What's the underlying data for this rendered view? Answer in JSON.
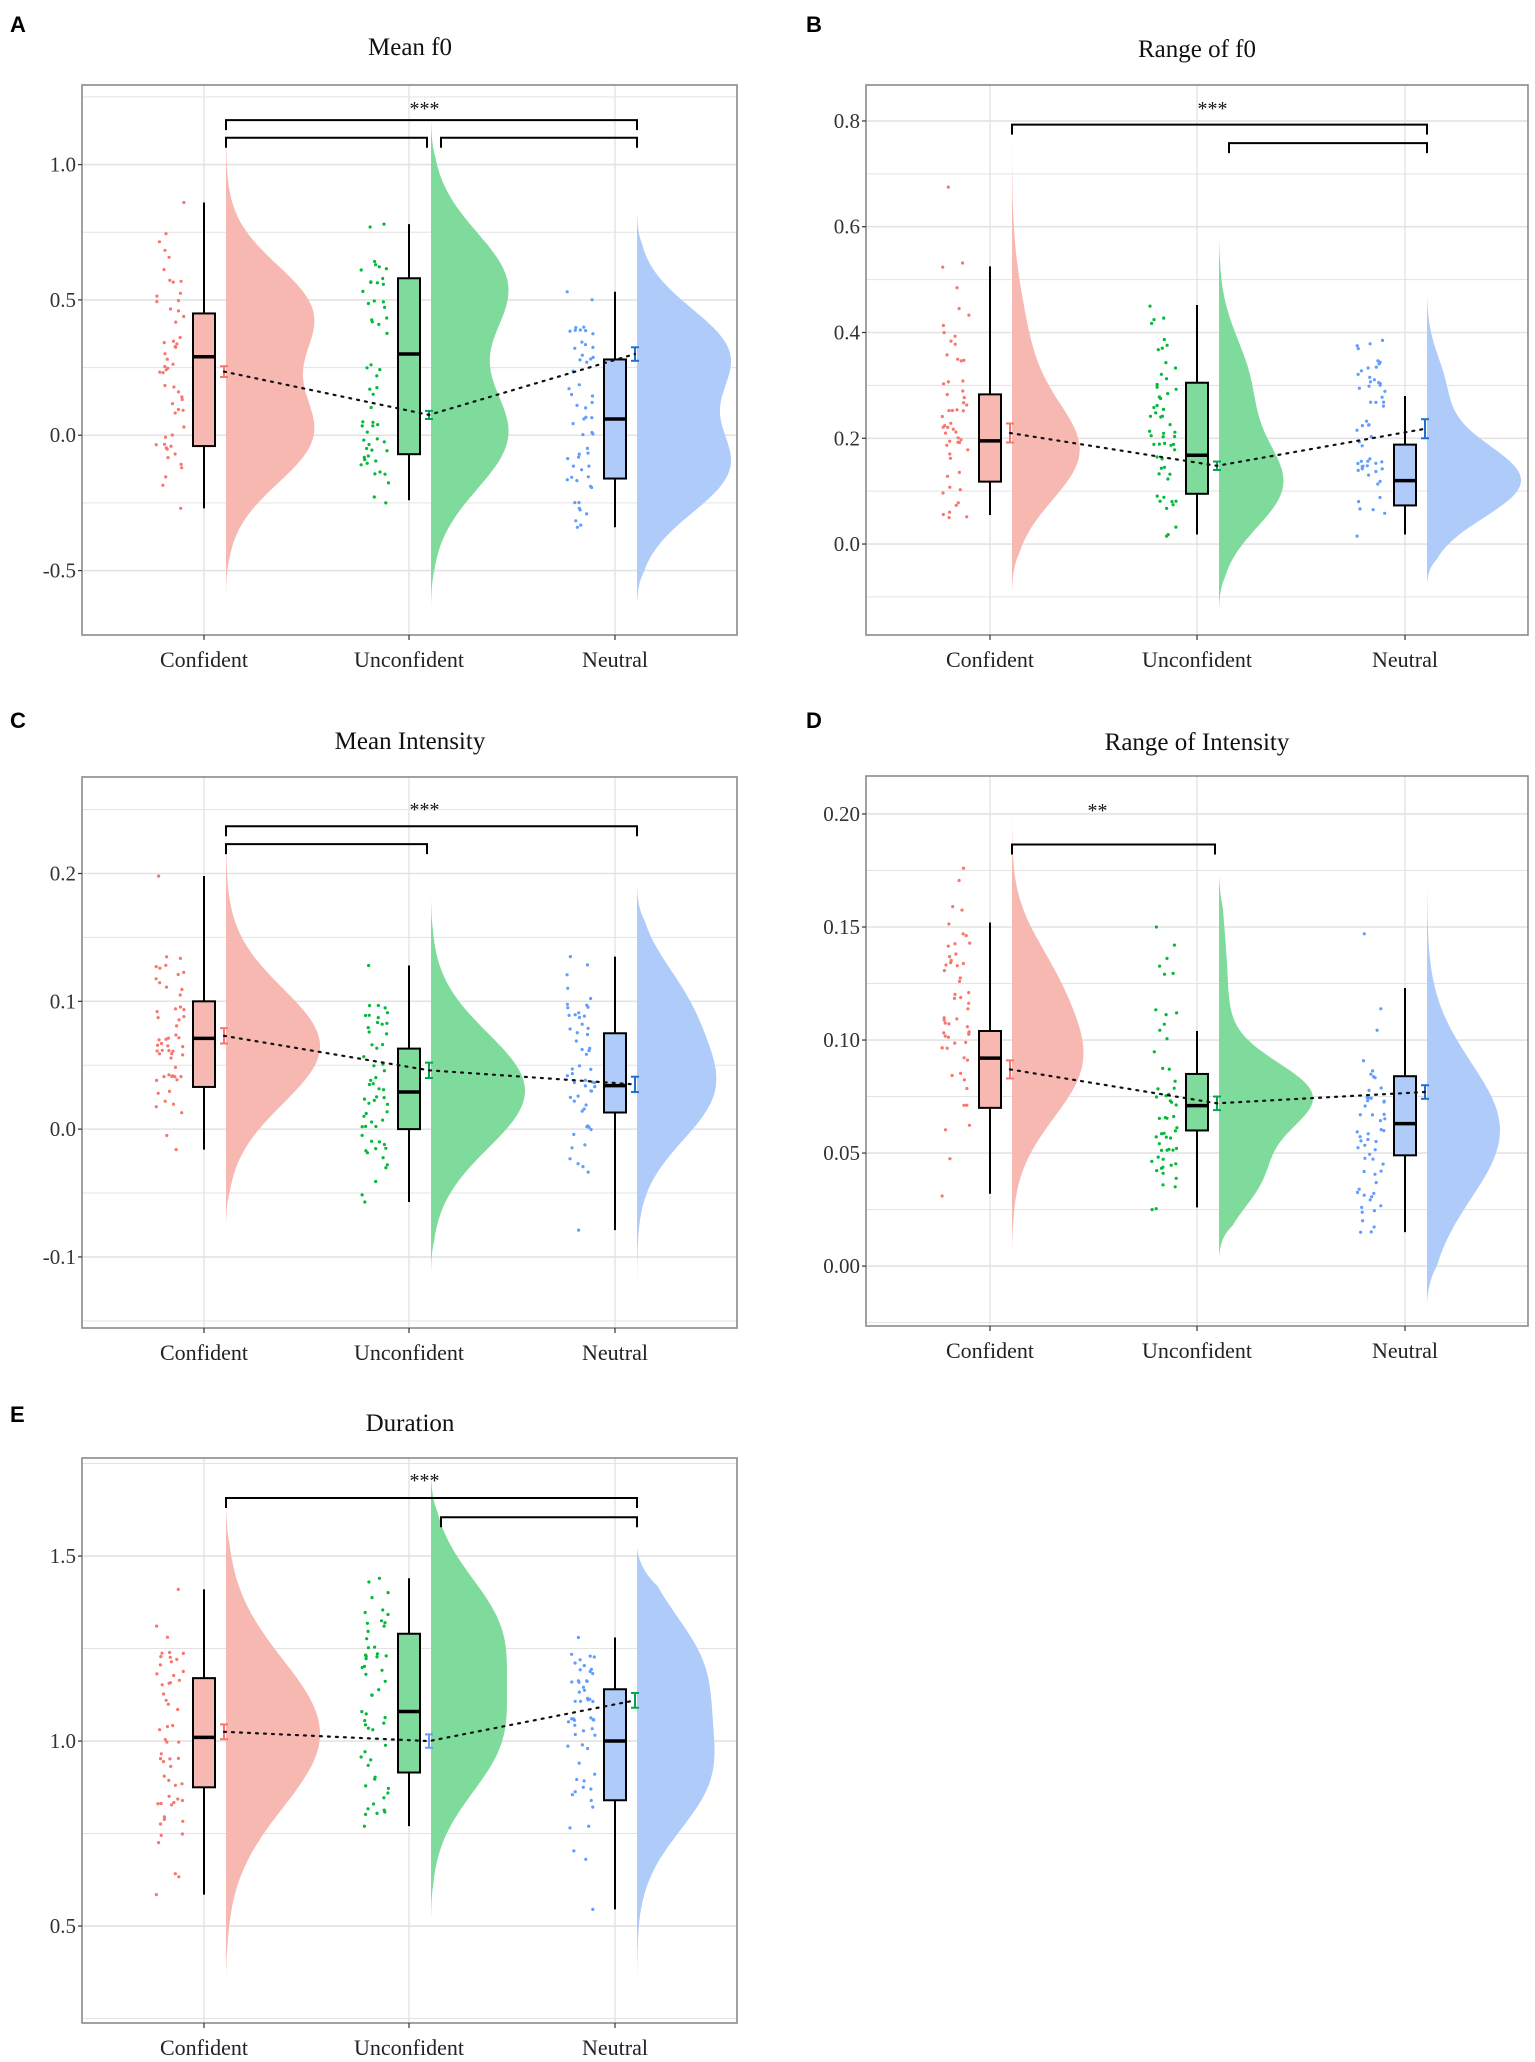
{
  "chart_data": [
    {
      "panel": "A",
      "type": "raincloud",
      "title": "Mean f0",
      "ylim": [
        -0.738,
        1.294
      ],
      "yticks": [
        -0.5,
        0,
        0.5,
        1.0
      ],
      "ytick_labels": [
        "-0.5",
        "0.0",
        "0.5",
        "1.0"
      ],
      "categories": [
        "Confident",
        "Unconfident",
        "Neutral"
      ],
      "groups": [
        {
          "name": "Confident",
          "box": {
            "min": -0.27,
            "q1": -0.04,
            "median": 0.29,
            "q3": 0.45,
            "max": 0.86
          },
          "mean": 0.235,
          "se": 0.02,
          "points_range": [
            -0.27,
            0.86
          ],
          "density_range": [
            -0.61,
            1.21
          ],
          "density_components": [
            {
              "mu": 0.45,
              "sd": 0.18,
              "w": 1
            },
            {
              "mu": 0.0,
              "sd": 0.18,
              "w": 1
            }
          ],
          "mean_bar_color": "#F8766D"
        },
        {
          "name": "Unconfident",
          "box": {
            "min": -0.24,
            "q1": -0.07,
            "median": 0.3,
            "q3": 0.58,
            "max": 0.78
          },
          "mean": 0.075,
          "se": 0.015,
          "points_range": [
            -0.25,
            0.78
          ],
          "density_range": [
            -0.65,
            1.18
          ],
          "density_components": [
            {
              "mu": 0.55,
              "sd": 0.2,
              "w": 1
            },
            {
              "mu": 0.0,
              "sd": 0.2,
              "w": 1
            }
          ],
          "mean_bar_color": "#00A651"
        },
        {
          "name": "Neutral",
          "box": {
            "min": -0.34,
            "q1": -0.16,
            "median": 0.06,
            "q3": 0.28,
            "max": 0.53
          },
          "mean": 0.3,
          "se": 0.025,
          "points_range": [
            -0.34,
            0.53
          ],
          "density_range": [
            -0.63,
            0.83
          ],
          "density_components": [
            {
              "mu": 0.3,
              "sd": 0.17,
              "w": 1
            },
            {
              "mu": -0.12,
              "sd": 0.17,
              "w": 1
            }
          ],
          "mean_bar_color": "#1F6FD0"
        }
      ],
      "significance": {
        "label": "***",
        "label_y": 1.22,
        "brackets": [
          {
            "from": 0,
            "to": 2,
            "y": 1.164
          },
          {
            "from": 0,
            "to": 1,
            "y": 1.099
          },
          {
            "from": 1,
            "to": 2,
            "y": 1.099
          }
        ]
      }
    },
    {
      "panel": "B",
      "type": "raincloud",
      "title": "Range of f0",
      "ylim": [
        -0.172,
        0.868
      ],
      "yticks": [
        0,
        0.2,
        0.4,
        0.6,
        0.8
      ],
      "ytick_labels": [
        "0.0",
        "0.2",
        "0.4",
        "0.6",
        "0.8"
      ],
      "categories": [
        "Confident",
        "Unconfident",
        "Neutral"
      ],
      "groups": [
        {
          "name": "Confident",
          "box": {
            "min": 0.055,
            "q1": 0.118,
            "median": 0.195,
            "q3": 0.283,
            "max": 0.525
          },
          "mean": 0.21,
          "se": 0.018,
          "points_range": [
            0.05,
            0.675
          ],
          "density_range": [
            -0.095,
            0.825
          ],
          "density_components": [
            {
              "mu": 0.17,
              "sd": 0.09,
              "w": 1
            },
            {
              "mu": 0.35,
              "sd": 0.12,
              "w": 0.35
            }
          ],
          "mean_bar_color": "#F8766D"
        },
        {
          "name": "Unconfident",
          "box": {
            "min": 0.018,
            "q1": 0.095,
            "median": 0.168,
            "q3": 0.305,
            "max": 0.452
          },
          "mean": 0.148,
          "se": 0.008,
          "points_range": [
            0.015,
            0.45
          ],
          "density_range": [
            -0.125,
            0.595
          ],
          "density_components": [
            {
              "mu": 0.11,
              "sd": 0.08,
              "w": 1
            },
            {
              "mu": 0.3,
              "sd": 0.09,
              "w": 0.55
            }
          ],
          "mean_bar_color": "#00A651"
        },
        {
          "name": "Neutral",
          "box": {
            "min": 0.018,
            "q1": 0.073,
            "median": 0.12,
            "q3": 0.188,
            "max": 0.28
          },
          "mean": 0.218,
          "se": 0.018,
          "points_range": [
            0.015,
            0.385
          ],
          "density_range": [
            -0.075,
            0.48
          ],
          "density_components": [
            {
              "mu": 0.12,
              "sd": 0.07,
              "w": 1
            },
            {
              "mu": 0.3,
              "sd": 0.06,
              "w": 0.15
            }
          ],
          "mean_bar_color": "#1F6FD0"
        }
      ],
      "significance": {
        "label": "***",
        "label_y": 0.83,
        "brackets": [
          {
            "from": 0,
            "to": 2,
            "y": 0.793
          },
          {
            "from": 1,
            "to": 2,
            "y": 0.758
          }
        ]
      }
    },
    {
      "panel": "C",
      "type": "raincloud",
      "title": "Mean Intensity",
      "ylim": [
        -0.1556,
        0.2755
      ],
      "yticks": [
        -0.1,
        0,
        0.1,
        0.2
      ],
      "ytick_labels": [
        "-0.1",
        "0.0",
        "0.1",
        "0.2"
      ],
      "categories": [
        "Confident",
        "Unconfident",
        "Neutral"
      ],
      "groups": [
        {
          "name": "Confident",
          "box": {
            "min": -0.016,
            "q1": 0.033,
            "median": 0.071,
            "q3": 0.1,
            "max": 0.198
          },
          "mean": 0.073,
          "se": 0.006,
          "points_range": [
            -0.016,
            0.198
          ],
          "density_range": [
            -0.076,
            0.257
          ],
          "density_components": [
            {
              "mu": 0.065,
              "sd": 0.045,
              "w": 1
            }
          ],
          "mean_bar_color": "#F8766D"
        },
        {
          "name": "Unconfident",
          "box": {
            "min": -0.057,
            "q1": 0.0,
            "median": 0.029,
            "q3": 0.063,
            "max": 0.128
          },
          "mean": 0.046,
          "se": 0.006,
          "points_range": [
            -0.057,
            0.128
          ],
          "density_range": [
            -0.112,
            0.182
          ],
          "density_components": [
            {
              "mu": 0.03,
              "sd": 0.045,
              "w": 1
            }
          ],
          "mean_bar_color": "#00A651"
        },
        {
          "name": "Neutral",
          "box": {
            "min": -0.079,
            "q1": 0.013,
            "median": 0.034,
            "q3": 0.075,
            "max": 0.135
          },
          "mean": 0.035,
          "se": 0.006,
          "points_range": [
            -0.079,
            0.135
          ],
          "density_range": [
            -0.135,
            0.19
          ],
          "density_components": [
            {
              "mu": 0.03,
              "sd": 0.04,
              "w": 1
            },
            {
              "mu": 0.1,
              "sd": 0.035,
              "w": 0.45
            }
          ],
          "mean_bar_color": "#1F6FD0"
        }
      ],
      "significance": {
        "label": "***",
        "label_y": 0.253,
        "brackets": [
          {
            "from": 0,
            "to": 2,
            "y": 0.237
          },
          {
            "from": 0,
            "to": 1,
            "y": 0.223
          }
        ]
      }
    },
    {
      "panel": "D",
      "type": "raincloud",
      "title": "Range of Intensity",
      "ylim": [
        -0.0265,
        0.2168
      ],
      "yticks": [
        0,
        0.05,
        0.1,
        0.15,
        0.2
      ],
      "ytick_labels": [
        "0.00",
        "0.05",
        "0.10",
        "0.15",
        "0.20"
      ],
      "categories": [
        "Confident",
        "Unconfident",
        "Neutral"
      ],
      "groups": [
        {
          "name": "Confident",
          "box": {
            "min": 0.032,
            "q1": 0.07,
            "median": 0.092,
            "q3": 0.104,
            "max": 0.152
          },
          "mean": 0.087,
          "se": 0.004,
          "points_range": [
            0.031,
            0.176
          ],
          "density_range": [
            0.002,
            0.207
          ],
          "density_components": [
            {
              "mu": 0.09,
              "sd": 0.025,
              "w": 1
            },
            {
              "mu": 0.13,
              "sd": 0.02,
              "w": 0.3
            }
          ],
          "mean_bar_color": "#F8766D"
        },
        {
          "name": "Unconfident",
          "box": {
            "min": 0.026,
            "q1": 0.06,
            "median": 0.071,
            "q3": 0.085,
            "max": 0.104
          },
          "mean": 0.072,
          "se": 0.003,
          "points_range": [
            0.025,
            0.15
          ],
          "density_range": [
            0.004,
            0.172
          ],
          "density_components": [
            {
              "mu": 0.075,
              "sd": 0.015,
              "w": 1
            },
            {
              "mu": 0.04,
              "sd": 0.015,
              "w": 0.45
            },
            {
              "mu": 0.12,
              "sd": 0.03,
              "w": 0.2
            }
          ],
          "mean_bar_color": "#00A651"
        },
        {
          "name": "Neutral",
          "box": {
            "min": 0.015,
            "q1": 0.049,
            "median": 0.063,
            "q3": 0.084,
            "max": 0.123
          },
          "mean": 0.077,
          "se": 0.003,
          "points_range": [
            0.015,
            0.147
          ],
          "density_range": [
            -0.016,
            0.178
          ],
          "density_components": [
            {
              "mu": 0.06,
              "sd": 0.03,
              "w": 1
            }
          ],
          "mean_bar_color": "#1F6FD0"
        }
      ],
      "significance": {
        "label": "**",
        "label_y": 0.203,
        "brackets": [
          {
            "from": 0,
            "to": 1,
            "y": 0.1865
          }
        ]
      }
    },
    {
      "panel": "E",
      "type": "raincloud",
      "title": "Duration",
      "ylim": [
        0.238,
        1.765
      ],
      "yticks": [
        0.5,
        1.0,
        1.5
      ],
      "ytick_labels": [
        "0.5",
        "1.0",
        "1.5"
      ],
      "categories": [
        "Confident",
        "Unconfident",
        "Neutral"
      ],
      "groups": [
        {
          "name": "Confident",
          "box": {
            "min": 0.585,
            "q1": 0.875,
            "median": 1.01,
            "q3": 1.17,
            "max": 1.41
          },
          "mean": 1.025,
          "se": 0.02,
          "points_range": [
            0.585,
            1.41
          ],
          "density_range": [
            0.34,
            1.64
          ],
          "density_components": [
            {
              "mu": 1.02,
              "sd": 0.2,
              "w": 1
            }
          ],
          "mean_bar_color": "#F8766D"
        },
        {
          "name": "Unconfident",
          "box": {
            "min": 0.77,
            "q1": 0.915,
            "median": 1.08,
            "q3": 1.29,
            "max": 1.44
          },
          "mean": 1.0,
          "se": 0.018,
          "points_range": [
            0.77,
            1.44
          ],
          "density_range": [
            0.51,
            1.72
          ],
          "density_components": [
            {
              "mu": 1.0,
              "sd": 0.15,
              "w": 1
            },
            {
              "mu": 1.3,
              "sd": 0.15,
              "w": 1
            }
          ],
          "mean_bar_color": "#619CFF"
        },
        {
          "name": "Neutral",
          "box": {
            "min": 0.545,
            "q1": 0.84,
            "median": 1.0,
            "q3": 1.14,
            "max": 1.28
          },
          "mean": 1.11,
          "se": 0.02,
          "points_range": [
            0.545,
            1.28
          ],
          "density_range": [
            0.31,
            1.52
          ],
          "density_components": [
            {
              "mu": 0.9,
              "sd": 0.15,
              "w": 1
            },
            {
              "mu": 1.2,
              "sd": 0.15,
              "w": 0.9
            }
          ],
          "mean_bar_color": "#00A651"
        }
      ],
      "significance": {
        "label": "***",
        "label_y": 1.713,
        "brackets": [
          {
            "from": 0,
            "to": 2,
            "y": 1.657
          },
          {
            "from": 1,
            "to": 2,
            "y": 1.605
          }
        ]
      }
    }
  ],
  "colors": {
    "point": [
      "#F8766D",
      "#00BA38",
      "#619CFF"
    ],
    "fill": [
      "#F8B8B2",
      "#7FDB9B",
      "#AECBFA"
    ],
    "grid": "#E3E3E3",
    "frame": "#8A8A8A"
  }
}
